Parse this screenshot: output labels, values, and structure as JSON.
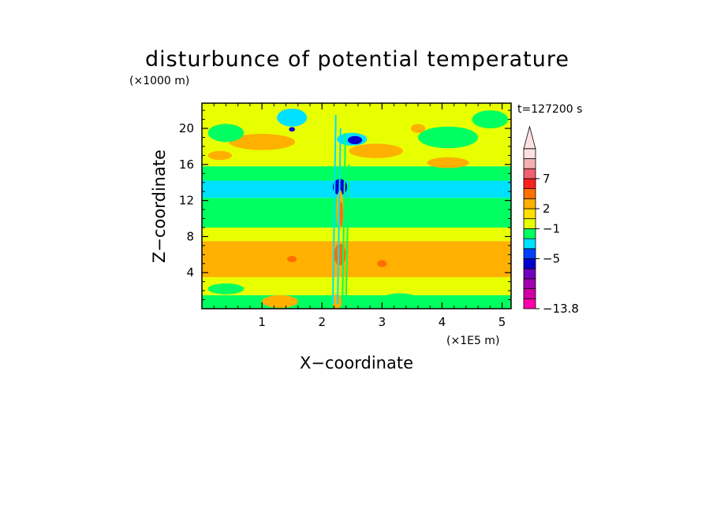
{
  "chart_data": {
    "type": "heatmap",
    "title": "disturbunce of potential temperature",
    "y_unit_label": "(×1000 m)",
    "x_unit_label": "(×1E5 m)",
    "xlabel": "X−coordinate",
    "ylabel": "Z−coordinate",
    "time_label": "t=127200 s",
    "xlim": [
      0,
      5.15
    ],
    "ylim": [
      0,
      22.8
    ],
    "x_ticks": [
      1,
      2,
      3,
      4,
      5
    ],
    "y_ticks": [
      4,
      8,
      12,
      16,
      20
    ],
    "x_tick_labels": [
      "1",
      "2",
      "3",
      "4",
      "5"
    ],
    "y_tick_labels": [
      "4",
      "8",
      "12",
      "16",
      "20"
    ],
    "colorbar": {
      "colors": [
        "#ff00aa",
        "#d000a8",
        "#a000b0",
        "#7000c0",
        "#0000d0",
        "#0040ff",
        "#00e0ff",
        "#00ff60",
        "#e8ff00",
        "#ffe000",
        "#ffb000",
        "#ff7000",
        "#ff2020",
        "#f06070",
        "#f4b0b0",
        "#ffe0e0"
      ],
      "labels": [
        {
          "text": "7",
          "value": 7
        },
        {
          "text": "2",
          "value": 2
        },
        {
          "text": "−1",
          "value": -1
        },
        {
          "text": "−5",
          "value": -5
        },
        {
          "text": "−13.8",
          "value": -13.8
        }
      ],
      "extend_max": true
    },
    "bands": [
      {
        "z0": 0.0,
        "z1": 1.5,
        "color": "#00ff60"
      },
      {
        "z0": 1.5,
        "z1": 3.5,
        "color": "#e8ff00"
      },
      {
        "z0": 3.5,
        "z1": 7.5,
        "color": "#ffb000"
      },
      {
        "z0": 7.5,
        "z1": 9.0,
        "color": "#e8ff00"
      },
      {
        "z0": 9.0,
        "z1": 12.3,
        "color": "#00ff60"
      },
      {
        "z0": 12.3,
        "z1": 14.2,
        "color": "#00e0ff"
      },
      {
        "z0": 14.2,
        "z1": 15.8,
        "color": "#00ff60"
      },
      {
        "z0": 15.8,
        "z1": 18.5,
        "color": "#e8ff00"
      },
      {
        "z0": 18.5,
        "z1": 22.8,
        "color": "#e8ff00"
      }
    ],
    "features": [
      {
        "x": 1.0,
        "z": 18.5,
        "rx": 0.55,
        "rz": 0.9,
        "color": "#ffb000"
      },
      {
        "x": 0.4,
        "z": 19.5,
        "rx": 0.3,
        "rz": 1.0,
        "color": "#00ff60"
      },
      {
        "x": 2.9,
        "z": 17.5,
        "rx": 0.45,
        "rz": 0.8,
        "color": "#ffb000"
      },
      {
        "x": 4.1,
        "z": 19.0,
        "rx": 0.5,
        "rz": 1.2,
        "color": "#00ff60"
      },
      {
        "x": 4.8,
        "z": 21.0,
        "rx": 0.3,
        "rz": 1.0,
        "color": "#00ff60"
      },
      {
        "x": 1.5,
        "z": 21.2,
        "rx": 0.25,
        "rz": 1.0,
        "color": "#00e0ff"
      },
      {
        "x": 2.5,
        "z": 18.8,
        "rx": 0.25,
        "rz": 0.7,
        "color": "#00e0ff"
      },
      {
        "x": 2.55,
        "z": 18.7,
        "rx": 0.12,
        "rz": 0.45,
        "color": "#0000d0"
      },
      {
        "x": 2.3,
        "z": 13.5,
        "rx": 0.12,
        "rz": 0.9,
        "color": "#0000d0"
      },
      {
        "x": 1.5,
        "z": 19.9,
        "rx": 0.05,
        "rz": 0.25,
        "color": "#0000d0"
      },
      {
        "x": 3.6,
        "z": 20.0,
        "rx": 0.12,
        "rz": 0.5,
        "color": "#ffb000"
      },
      {
        "x": 4.1,
        "z": 16.2,
        "rx": 0.35,
        "rz": 0.6,
        "color": "#ffb000"
      },
      {
        "x": 0.3,
        "z": 17.0,
        "rx": 0.2,
        "rz": 0.5,
        "color": "#ffb000"
      },
      {
        "x": 2.3,
        "z": 11.0,
        "rx": 0.06,
        "rz": 2.2,
        "color": "#ffb000"
      },
      {
        "x": 2.32,
        "z": 10.5,
        "rx": 0.03,
        "rz": 1.4,
        "color": "#ff7000"
      },
      {
        "x": 2.3,
        "z": 6.0,
        "rx": 0.1,
        "rz": 1.2,
        "color": "#ff7000"
      },
      {
        "x": 1.5,
        "z": 5.5,
        "rx": 0.08,
        "rz": 0.35,
        "color": "#ff7000"
      },
      {
        "x": 3.0,
        "z": 5.0,
        "rx": 0.08,
        "rz": 0.4,
        "color": "#ff7000"
      },
      {
        "x": 2.25,
        "z": 0.8,
        "rx": 0.08,
        "rz": 0.8,
        "color": "#ffb000"
      },
      {
        "x": 1.3,
        "z": 0.8,
        "rx": 0.3,
        "rz": 0.7,
        "color": "#ffb000"
      },
      {
        "x": 3.3,
        "z": 0.9,
        "rx": 0.35,
        "rz": 0.8,
        "color": "#00ff60"
      },
      {
        "x": 4.6,
        "z": 0.8,
        "rx": 0.35,
        "rz": 0.6,
        "color": "#00ff60"
      },
      {
        "x": 0.4,
        "z": 2.2,
        "rx": 0.3,
        "rz": 0.6,
        "color": "#00ff60"
      }
    ],
    "vertical_streaks": [
      {
        "x": 2.18,
        "z0": 0.5,
        "z1": 21.5,
        "color": "#00e0ff"
      },
      {
        "x": 2.26,
        "z0": 0.5,
        "z1": 20.0,
        "color": "#00e0ff"
      },
      {
        "x": 2.34,
        "z0": 0.5,
        "z1": 19.5,
        "color": "#00ff60"
      },
      {
        "x": 2.4,
        "z0": 1.0,
        "z1": 16.0,
        "color": "#00ff60"
      }
    ]
  }
}
